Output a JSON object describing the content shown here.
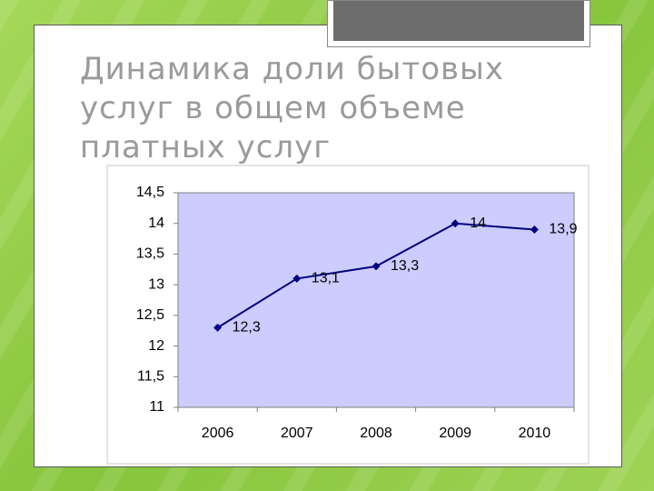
{
  "chart_data": {
    "type": "line",
    "title": [
      "Динамика доли бытовых",
      "услуг в общем объеме",
      "платных услуг"
    ],
    "categories": [
      "2006",
      "2007",
      "2008",
      "2009",
      "2010"
    ],
    "values": [
      12.3,
      13.1,
      13.3,
      14,
      13.9
    ],
    "value_labels": [
      "12,3",
      "13,1",
      "13,3",
      "14",
      "13,9"
    ],
    "color": "#000080",
    "ylim": [
      11,
      14.5
    ],
    "yticks": [
      11,
      {
        "value": 11.5,
        "label": "11,5"
      },
      12,
      {
        "value": 12.5,
        "label": "12,5"
      },
      13,
      {
        "value": 13.5,
        "label": "13,5"
      },
      14,
      {
        "value": 14.5,
        "label": "14,5"
      }
    ],
    "grid": false
  }
}
